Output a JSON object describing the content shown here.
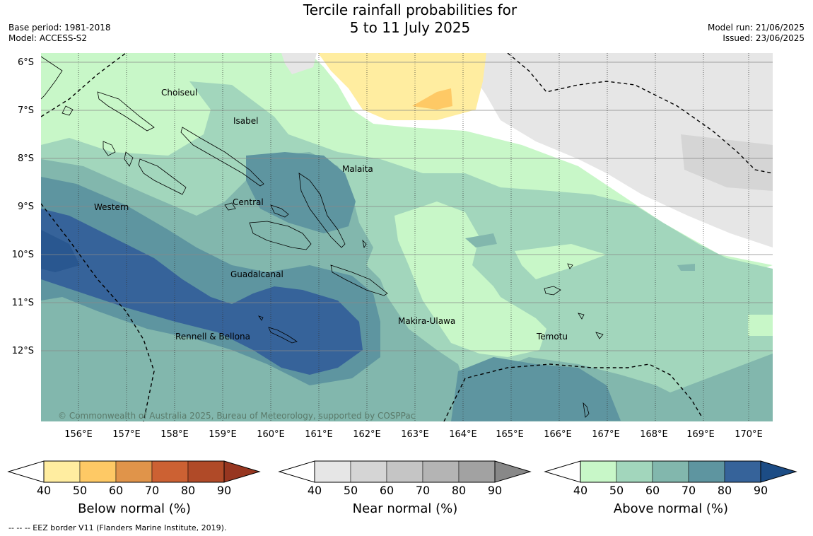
{
  "title": {
    "line1": "Tercile rainfall probabilities for",
    "line2": "5 to 11 July 2025"
  },
  "meta_left": {
    "base_period": "Base period: 1981-2018",
    "model": "Model: ACCESS-S2"
  },
  "meta_right": {
    "model_run": "Model run: 21/06/2025",
    "issued": "Issued: 23/06/2025"
  },
  "map": {
    "lat_labels": [
      "6°S",
      "7°S",
      "8°S",
      "9°S",
      "10°S",
      "11°S",
      "12°S"
    ],
    "lon_labels": [
      "156°E",
      "157°E",
      "158°E",
      "159°E",
      "160°E",
      "161°E",
      "162°E",
      "163°E",
      "164°E",
      "165°E",
      "166°E",
      "167°E",
      "168°E",
      "169°E",
      "170°E"
    ],
    "place_labels": {
      "choiseul": "Choiseul",
      "isabel": "Isabel",
      "malaita": "Malaita",
      "western": "Western",
      "central": "Central",
      "guadalcanal": "Guadalcanal",
      "makira": "Makira-Ulawa",
      "rennell": "Rennell & Bellona",
      "temotu": "Temotu"
    },
    "copyright": "© Commonwealth of Australia 2025, Bureau of Meteorology, supported by COSPPac"
  },
  "colorbars": {
    "below": {
      "title": "Below normal (%)",
      "ticks": [
        "40",
        "50",
        "60",
        "70",
        "80",
        "90"
      ],
      "colors": [
        "#ffeda0",
        "#fec965",
        "#e0944a",
        "#cc6133",
        "#b04a28",
        "#973620"
      ]
    },
    "near": {
      "title": "Near normal (%)",
      "ticks": [
        "40",
        "50",
        "60",
        "70",
        "80",
        "90"
      ],
      "colors": [
        "#e6e6e6",
        "#d5d5d5",
        "#c5c5c5",
        "#b4b4b4",
        "#a2a2a2",
        "#888888"
      ]
    },
    "above": {
      "title": "Above normal (%)",
      "ticks": [
        "40",
        "50",
        "60",
        "70",
        "80",
        "90"
      ],
      "colors": [
        "#c8f7c8",
        "#a2d6bc",
        "#82b7ad",
        "#5e95a0",
        "#36639a",
        "#1c4c85"
      ]
    }
  },
  "footnote": "--  --  -- EEZ border V11 (Flanders Marine Institute, 2019)."
}
